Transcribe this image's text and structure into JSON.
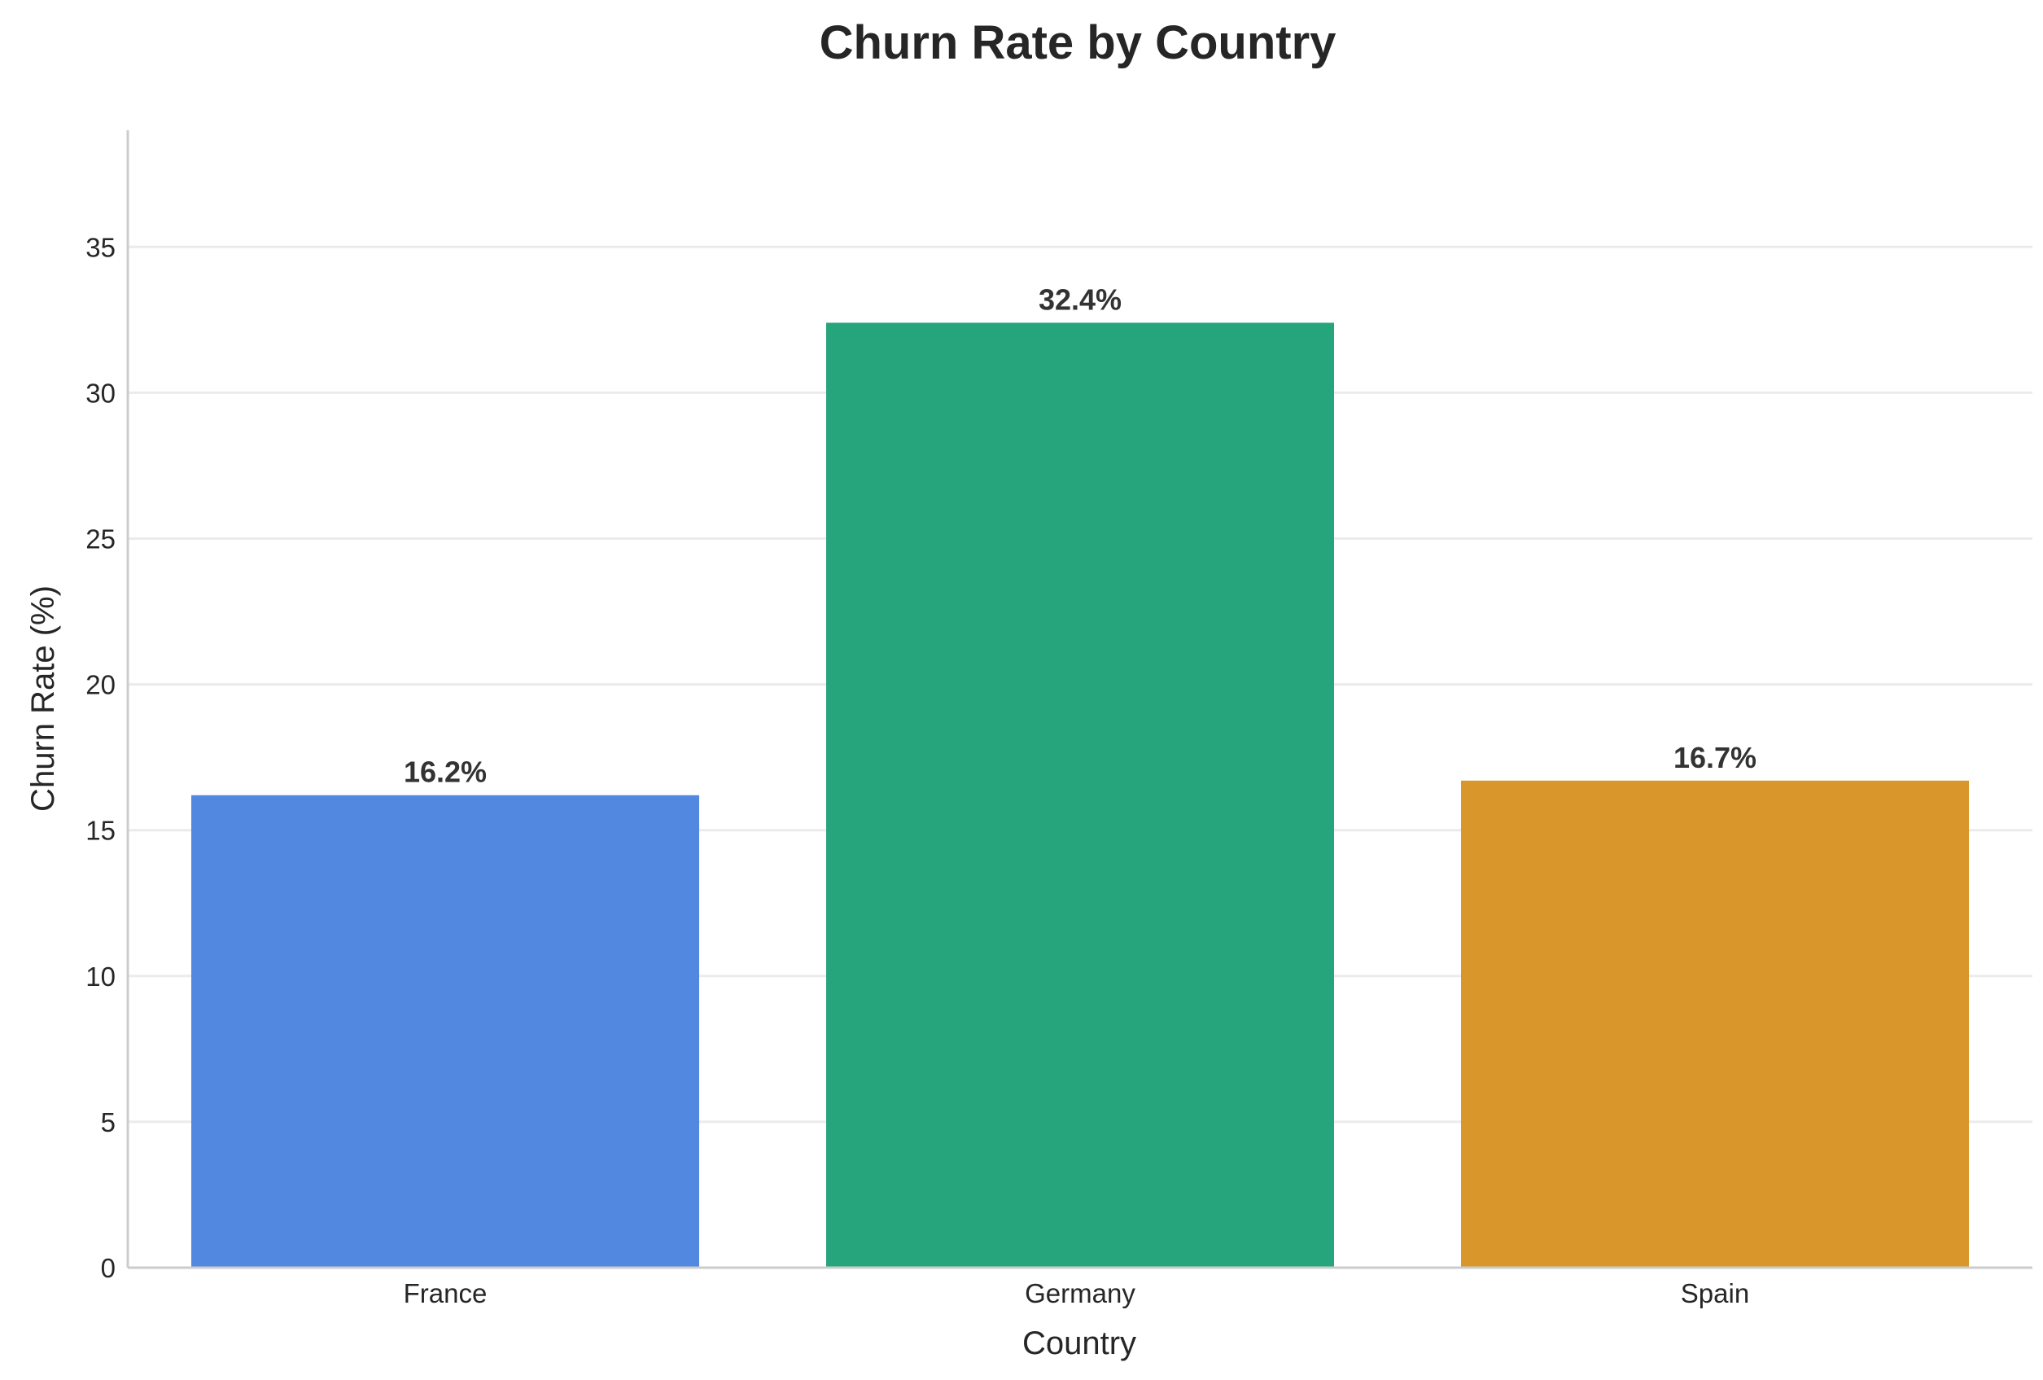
{
  "chart_data": {
    "type": "bar",
    "title": "Churn Rate by Country",
    "xlabel": "Country",
    "ylabel": "Churn Rate (%)",
    "categories": [
      "France",
      "Germany",
      "Spain"
    ],
    "values": [
      16.2,
      32.4,
      16.7
    ],
    "value_labels": [
      "16.2%",
      "32.4%",
      "16.7%"
    ],
    "colors": [
      "#5288e0",
      "#26a47b",
      "#d8962b"
    ],
    "ylim": [
      0,
      39
    ],
    "yticks": [
      0,
      5,
      10,
      15,
      20,
      25,
      30,
      35
    ],
    "ytick_labels": [
      "0",
      "5",
      "10",
      "15",
      "20",
      "25",
      "30",
      "35"
    ],
    "grid": "y"
  }
}
